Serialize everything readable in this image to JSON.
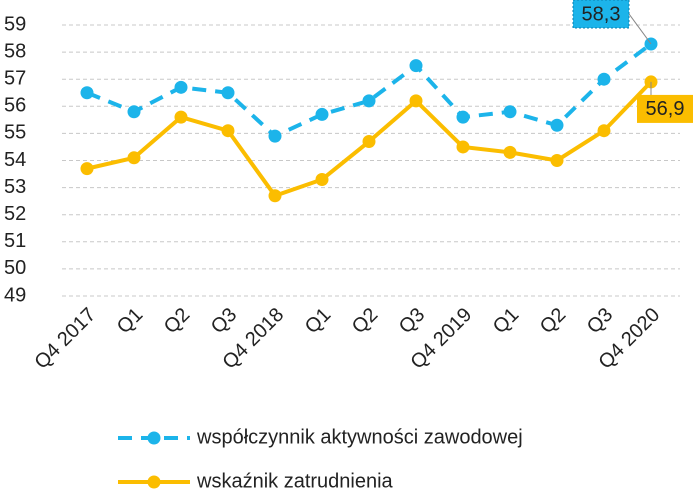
{
  "chart_data": {
    "type": "line",
    "categories": [
      "Q4 2017",
      "Q1",
      "Q2",
      "Q3",
      "Q4 2018",
      "Q1",
      "Q2",
      "Q3",
      "Q4 2019",
      "Q1",
      "Q2",
      "Q3",
      "Q4 2020"
    ],
    "series": [
      {
        "name": "współczynnik aktywności zawodowej",
        "color": "#1cb4ea",
        "dashed": true,
        "values": [
          56.5,
          55.8,
          56.7,
          56.5,
          54.9,
          55.7,
          56.2,
          57.5,
          55.6,
          55.8,
          55.3,
          57.0,
          58.3
        ],
        "value_labels": [
          null,
          null,
          null,
          null,
          null,
          null,
          null,
          null,
          null,
          null,
          null,
          null,
          "58,3"
        ]
      },
      {
        "name": "wskaźnik zatrudnienia",
        "color": "#fbbd00",
        "dashed": false,
        "values": [
          53.7,
          54.1,
          55.6,
          55.1,
          52.7,
          53.3,
          54.7,
          56.2,
          54.5,
          54.3,
          54.0,
          55.1,
          56.9
        ],
        "value_labels": [
          null,
          null,
          null,
          null,
          null,
          null,
          null,
          null,
          null,
          null,
          null,
          null,
          "56,9"
        ]
      }
    ],
    "ylim": [
      49,
      59
    ],
    "yticks": [
      49,
      50,
      51,
      52,
      53,
      54,
      55,
      56,
      57,
      58,
      59
    ],
    "grid": true
  }
}
